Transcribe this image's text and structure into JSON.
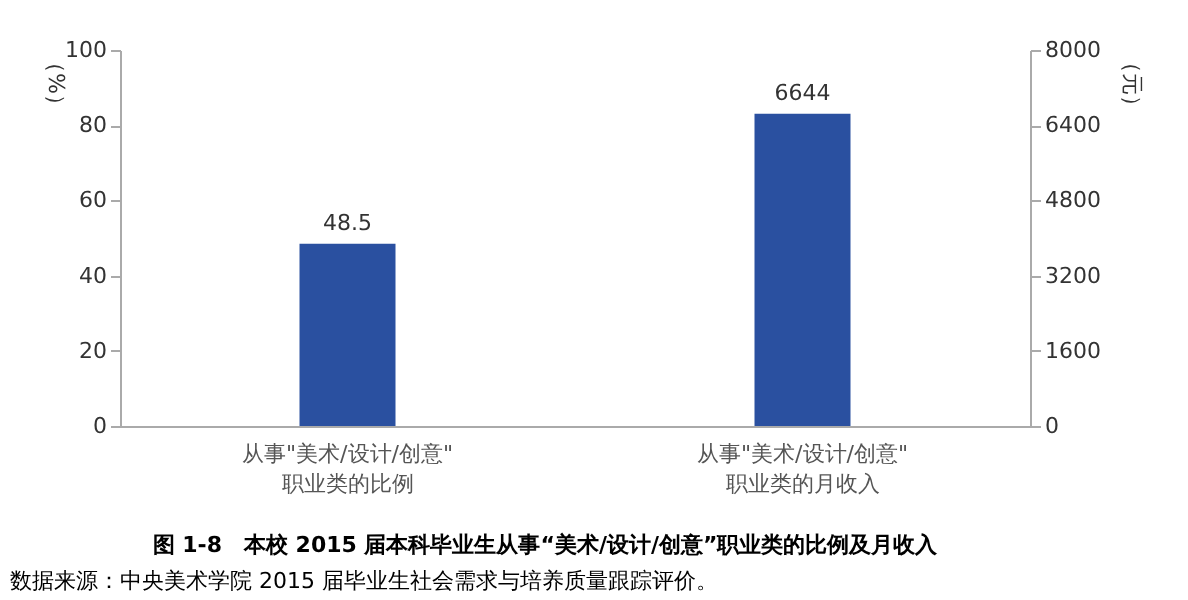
{
  "chart_data": {
    "type": "bar",
    "title": "图 1-8　本校 2015 届本科毕业生从事“美术/设计/创意”职业类的比例及月收入",
    "categories": [
      "从事\"美术/设计/创意\"\n职业类的比例",
      "从事\"美术/设计/创意\"\n职业类的月收入"
    ],
    "series": [
      {
        "color": "#2a50a0",
        "values": [
          48.5,
          null
        ]
      },
      {
        "color": "#2a50a0",
        "values": [
          null,
          6644
        ],
        "axis": "y2"
      }
    ],
    "ylabel": "（%）",
    "y2label": "（元）",
    "ylim": [
      0,
      100
    ],
    "yticks": [
      0,
      20,
      40,
      60,
      80,
      100
    ],
    "y2lim": [
      0,
      8000
    ],
    "y2ticks": [
      0,
      1600,
      3200,
      4800,
      6400,
      8000
    ],
    "data_labels": true,
    "annotations": [
      "数据来源：中央美术学院 2015 届毕业生社会需求与培养质量跟踪评价。"
    ]
  }
}
